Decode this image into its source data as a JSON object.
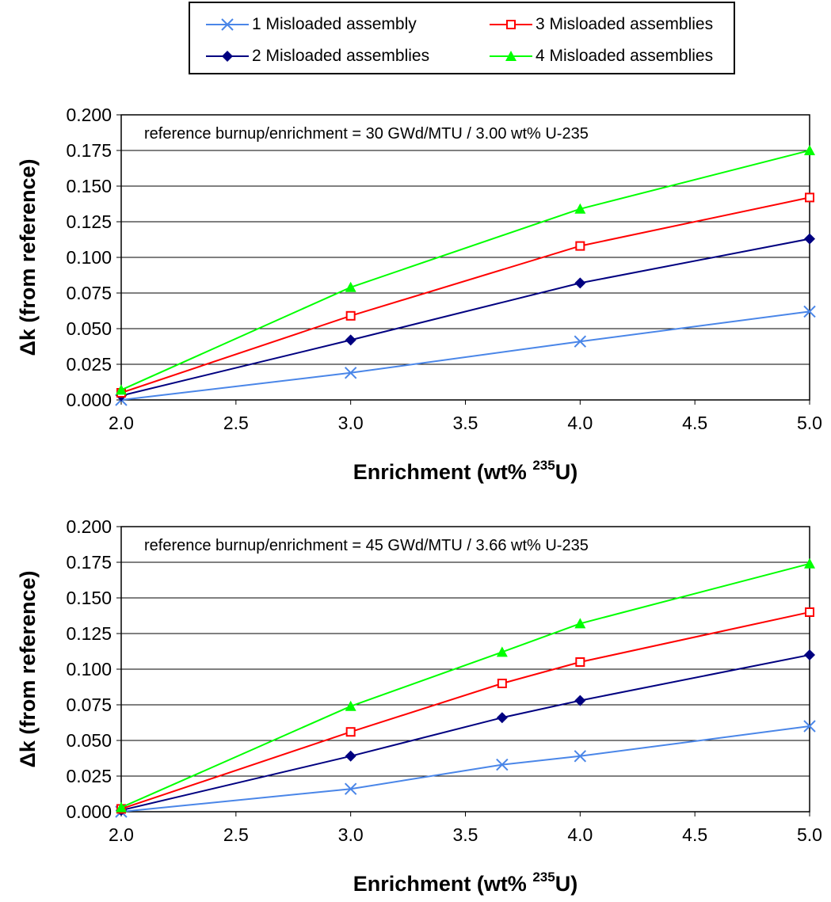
{
  "legend": {
    "items": [
      {
        "label": "1 Misloaded assembly",
        "series": 0
      },
      {
        "label": "3 Misloaded assemblies",
        "series": 2
      },
      {
        "label": "2 Misloaded assemblies",
        "series": 1
      },
      {
        "label": "4 Misloaded assemblies",
        "series": 3
      }
    ]
  },
  "series_styles": [
    {
      "color": "#4a86e8",
      "marker": "x"
    },
    {
      "color": "#000080",
      "marker": "diamond"
    },
    {
      "color": "#ff0000",
      "marker": "square"
    },
    {
      "color": "#00ff00",
      "marker": "triangle"
    }
  ],
  "chart_data": [
    {
      "type": "line",
      "annotation": "reference burnup/enrichment = 30 GWd/MTU / 3.00 wt% U-235",
      "xlabel": "Enrichment (wt% ",
      "xlabel_sup": "235",
      "xlabel_tail": "U)",
      "ylabel": "Δk (from reference)",
      "xlim": [
        2.0,
        5.0
      ],
      "ylim": [
        0.0,
        0.2
      ],
      "xticks": [
        "2.0",
        "2.5",
        "3.0",
        "3.5",
        "4.0",
        "4.5",
        "5.0"
      ],
      "yticks": [
        "0.000",
        "0.025",
        "0.050",
        "0.075",
        "0.100",
        "0.125",
        "0.150",
        "0.175",
        "0.200"
      ],
      "grid": "horizontal",
      "series": [
        {
          "name": "1 Misloaded assembly",
          "x": [
            2.0,
            3.0,
            4.0,
            5.0
          ],
          "y": [
            0.0,
            0.019,
            0.041,
            0.062
          ]
        },
        {
          "name": "2 Misloaded assemblies",
          "x": [
            2.0,
            3.0,
            4.0,
            5.0
          ],
          "y": [
            0.003,
            0.042,
            0.082,
            0.113
          ]
        },
        {
          "name": "3 Misloaded assemblies",
          "x": [
            2.0,
            3.0,
            4.0,
            5.0
          ],
          "y": [
            0.005,
            0.059,
            0.108,
            0.142
          ]
        },
        {
          "name": "4 Misloaded assemblies",
          "x": [
            2.0,
            3.0,
            4.0,
            5.0
          ],
          "y": [
            0.007,
            0.079,
            0.134,
            0.175
          ]
        }
      ]
    },
    {
      "type": "line",
      "annotation": "reference burnup/enrichment = 45 GWd/MTU / 3.66 wt% U-235",
      "xlabel": "Enrichment (wt% ",
      "xlabel_sup": "235",
      "xlabel_tail": "U)",
      "ylabel": "Δk (from reference)",
      "xlim": [
        2.0,
        5.0
      ],
      "ylim": [
        0.0,
        0.2
      ],
      "xticks": [
        "2.0",
        "2.5",
        "3.0",
        "3.5",
        "4.0",
        "4.5",
        "5.0"
      ],
      "yticks": [
        "0.000",
        "0.025",
        "0.050",
        "0.075",
        "0.100",
        "0.125",
        "0.150",
        "0.175",
        "0.200"
      ],
      "grid": "horizontal",
      "series": [
        {
          "name": "1 Misloaded assembly",
          "x": [
            2.0,
            3.0,
            3.66,
            4.0,
            5.0
          ],
          "y": [
            0.0,
            0.016,
            0.033,
            0.039,
            0.06
          ]
        },
        {
          "name": "2 Misloaded assemblies",
          "x": [
            2.0,
            3.0,
            3.66,
            4.0,
            5.0
          ],
          "y": [
            0.001,
            0.039,
            0.066,
            0.078,
            0.11
          ]
        },
        {
          "name": "3 Misloaded assemblies",
          "x": [
            2.0,
            3.0,
            3.66,
            4.0,
            5.0
          ],
          "y": [
            0.002,
            0.056,
            0.09,
            0.105,
            0.14
          ]
        },
        {
          "name": "4 Misloaded assemblies",
          "x": [
            2.0,
            3.0,
            3.66,
            4.0,
            5.0
          ],
          "y": [
            0.003,
            0.074,
            0.112,
            0.132,
            0.174
          ]
        }
      ]
    }
  ]
}
